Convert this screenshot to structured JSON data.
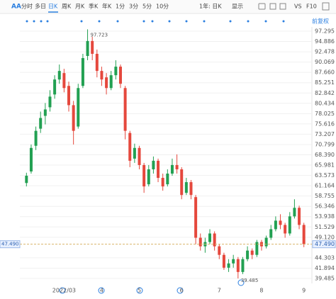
{
  "toolbar": {
    "logo": "AA",
    "items": [
      "分时",
      "多日",
      "日K",
      "周K",
      "月K",
      "季K",
      "年K",
      "1分",
      "3分",
      "5分",
      "10分"
    ],
    "active": 2,
    "range": "1年: 日K",
    "display": "显示",
    "vs": "VS",
    "f10": "F10"
  },
  "adjust": "前复权",
  "chart_data": {
    "type": "candlestick",
    "categories": [
      null,
      null,
      null,
      null,
      null,
      null,
      null,
      null,
      "2022/03",
      null,
      null,
      null,
      null,
      null,
      null,
      null,
      "4",
      null,
      null,
      null,
      null,
      null,
      null,
      null,
      "5",
      null,
      null,
      null,
      null,
      null,
      null,
      null,
      null,
      "6",
      null,
      null,
      null,
      null,
      null,
      null,
      null,
      "7",
      null,
      null,
      null,
      null,
      null,
      null,
      null,
      null,
      "8",
      null,
      null,
      null,
      null,
      null,
      null,
      null,
      null,
      "9"
    ],
    "open": [
      61.8,
      64.5,
      70.5,
      74.5,
      77.5,
      79.5,
      82.5,
      86.0,
      87.5,
      84.5,
      80.0,
      75.0,
      84.5,
      91.5,
      95.0,
      92.0,
      88.0,
      86.5,
      84.0,
      87.0,
      89.0,
      84.0,
      73.5,
      67.5,
      70.0,
      66.0,
      61.5,
      65.0,
      67.0,
      63.0,
      61.5,
      64.0,
      66.0,
      65.0,
      59.5,
      62.0,
      58.5,
      49.0,
      47.0,
      48.0,
      50.0,
      47.0,
      45.0,
      42.0,
      43.0,
      44.0,
      41.0,
      44.0,
      46.0,
      45.0,
      48.0,
      47.0,
      49.0,
      51.0,
      53.0,
      52.0,
      50.0,
      54.0,
      56.0,
      52.0
    ],
    "high": [
      64.2,
      70.8,
      75.0,
      78.5,
      80.5,
      83.5,
      87.0,
      89.5,
      88.5,
      85.5,
      81.0,
      85.0,
      92.0,
      97.723,
      96.0,
      93.0,
      89.0,
      87.5,
      88.0,
      90.5,
      89.5,
      84.5,
      74.0,
      71.0,
      70.5,
      66.5,
      66.0,
      68.0,
      67.5,
      64.0,
      65.0,
      67.5,
      68.5,
      65.5,
      63.0,
      62.5,
      59.0,
      50.0,
      49.0,
      51.0,
      50.5,
      47.5,
      45.5,
      44.0,
      45.0,
      44.5,
      44.5,
      47.0,
      46.5,
      48.5,
      48.5,
      49.5,
      52.0,
      54.0,
      54.5,
      52.5,
      55.0,
      58.0,
      56.5,
      52.5
    ],
    "low": [
      61.0,
      64.0,
      69.5,
      73.5,
      75.5,
      78.5,
      81.5,
      85.0,
      83.0,
      78.5,
      70.8,
      74.5,
      84.0,
      90.5,
      90.5,
      86.5,
      84.5,
      82.5,
      83.5,
      86.0,
      84.0,
      72.0,
      65.5,
      66.5,
      65.0,
      59.5,
      61.0,
      64.0,
      62.0,
      60.0,
      61.0,
      63.5,
      64.0,
      58.0,
      59.0,
      58.0,
      47.5,
      46.0,
      45.5,
      47.5,
      46.0,
      44.0,
      41.5,
      41.0,
      42.0,
      39.485,
      40.5,
      43.5,
      44.0,
      44.5,
      46.0,
      46.5,
      48.5,
      50.5,
      51.0,
      49.0,
      49.5,
      53.5,
      51.0,
      46.8
    ],
    "close": [
      63.5,
      70.0,
      74.0,
      77.0,
      79.0,
      82.0,
      86.0,
      88.0,
      84.0,
      80.0,
      74.0,
      84.0,
      91.0,
      95.0,
      92.0,
      88.0,
      86.0,
      84.0,
      87.0,
      89.0,
      85.0,
      74.0,
      67.0,
      70.0,
      66.0,
      61.0,
      65.0,
      67.0,
      63.0,
      61.0,
      64.0,
      66.0,
      65.0,
      59.0,
      62.0,
      59.0,
      49.0,
      47.0,
      48.0,
      50.0,
      47.0,
      45.0,
      42.0,
      43.0,
      44.0,
      41.0,
      44.0,
      46.0,
      45.0,
      48.0,
      47.0,
      49.0,
      51.0,
      53.0,
      52.0,
      50.0,
      54.0,
      56.0,
      52.0,
      47.49
    ],
    "up_color": "#22a052",
    "down_color": "#e5483d",
    "ylim": [
      39.485,
      97.295
    ],
    "yticks": [
      97.295,
      94.886,
      92.478,
      90.069,
      {
        "value": 87.66,
        "label": "87.660"
      },
      85.251,
      82.842,
      80.434,
      78.025,
      75.616,
      73.207,
      70.799,
      {
        "value": 68.39,
        "label": "68.390"
      },
      65.981,
      63.573,
      61.164,
      58.755,
      56.346,
      53.938,
      51.529,
      {
        "value": 49.12,
        "label": "49.120"
      },
      44.303,
      41.894,
      39.485
    ],
    "last_price": {
      "value": 47.49,
      "label": "47.490"
    },
    "grid": true
  }
}
